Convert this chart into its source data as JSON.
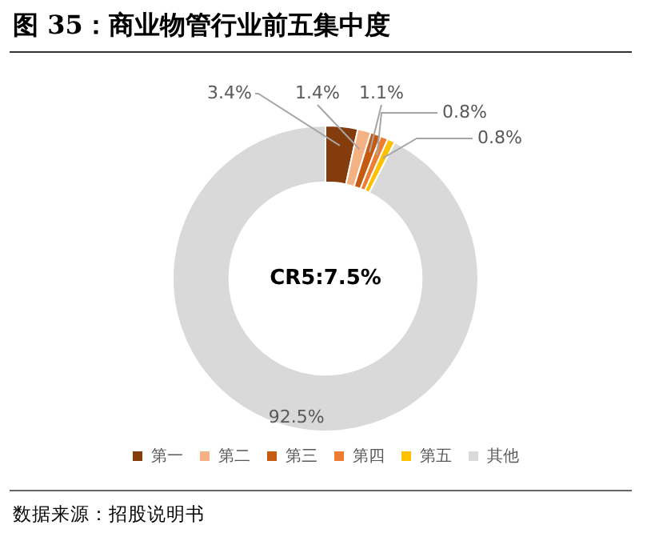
{
  "chart_data": {
    "type": "donut",
    "title": "图 35：商业物管行业前五集中度",
    "categories": [
      "第一",
      "第二",
      "第三",
      "第四",
      "第五",
      "其他"
    ],
    "values": [
      3.4,
      1.4,
      1.1,
      0.8,
      0.8,
      92.5
    ],
    "colors": [
      "#843c0c",
      "#f4b183",
      "#c55a11",
      "#ed7d31",
      "#ffc000",
      "#d9d9d9"
    ],
    "value_labels": [
      "3.4%",
      "1.4%",
      "1.1%",
      "0.8%",
      "0.8%",
      "92.5%"
    ],
    "legend": "bottom",
    "annotations": [
      "CR5:7.5%",
      "数据来源：招股说明书"
    ]
  }
}
